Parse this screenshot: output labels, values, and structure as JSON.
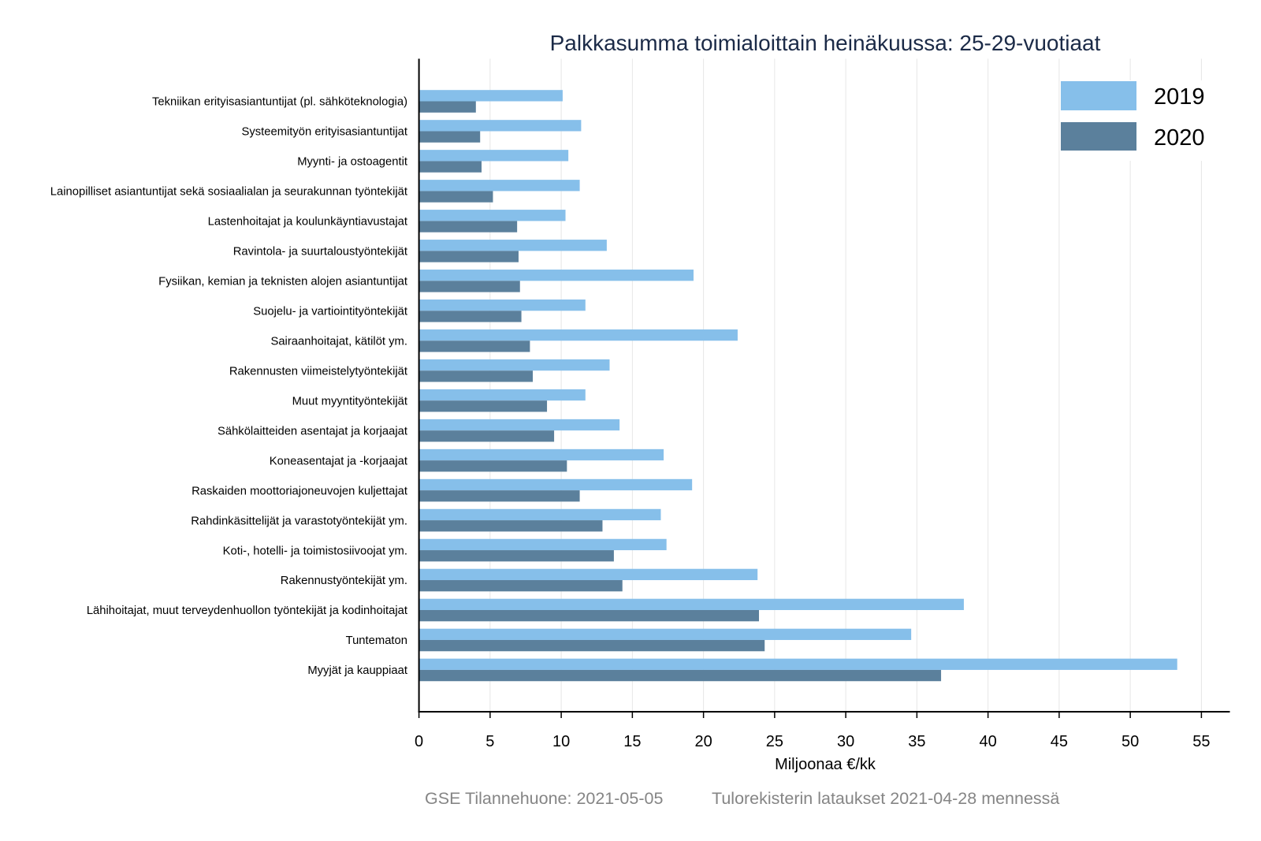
{
  "chart_data": {
    "type": "bar",
    "orientation": "horizontal",
    "title": "Palkkasumma toimialoittain heinäkuussa: 25-29-vuotiaat",
    "xlabel": "Miljoonaa €/kk",
    "xlim": [
      0,
      57
    ],
    "xticks": [
      0,
      5,
      10,
      15,
      20,
      25,
      30,
      35,
      40,
      45,
      50,
      55
    ],
    "grid": true,
    "legend_position": "top-right",
    "categories": [
      "Tekniikan erityisasiantuntijat (pl. sähköteknologia)",
      "Systeemityön erityisasiantuntijat",
      "Myynti- ja ostoagentit",
      "Lainopilliset asiantuntijat sekä sosiaalialan ja seurakunnan työntekijät",
      "Lastenhoitajat ja koulunkäyntiavustajat",
      "Ravintola- ja suurtaloustyöntekijät",
      "Fysiikan, kemian ja teknisten alojen asiantuntijat",
      "Suojelu- ja vartiointityöntekijät",
      "Sairaanhoitajat, kätilöt ym.",
      "Rakennusten viimeistelytyöntekijät",
      "Muut myyntityöntekijät",
      "Sähkölaitteiden asentajat ja korjaajat",
      "Koneasentajat ja -korjaajat",
      "Raskaiden moottoriajoneuvojen kuljettajat",
      "Rahdinkäsittelijät ja varastotyöntekijät ym.",
      "Koti-, hotelli- ja toimistosiivoojat ym.",
      "Rakennustyöntekijät ym.",
      "Lähihoitajat, muut terveydenhuollon työntekijät ja kodinhoitajat",
      "Tuntematon",
      "Myyjät ja kauppiaat"
    ],
    "series": [
      {
        "name": "2019",
        "color": "#86BFEA",
        "values": [
          10.1,
          11.4,
          10.5,
          11.3,
          10.3,
          13.2,
          19.3,
          11.7,
          22.4,
          13.4,
          11.7,
          14.1,
          17.2,
          19.2,
          17.0,
          17.4,
          23.8,
          38.3,
          34.6,
          53.3
        ]
      },
      {
        "name": "2020",
        "color": "#5B809C",
        "values": [
          4.0,
          4.3,
          4.4,
          5.2,
          6.9,
          7.0,
          7.1,
          7.2,
          7.8,
          8.0,
          9.0,
          9.5,
          10.4,
          11.3,
          12.9,
          13.7,
          14.3,
          23.9,
          24.3,
          36.7
        ]
      }
    ]
  },
  "footer": {
    "left": "GSE Tilannehuone: 2021-05-05",
    "right": "Tulorekisterin lataukset 2021-04-28 mennessä"
  }
}
